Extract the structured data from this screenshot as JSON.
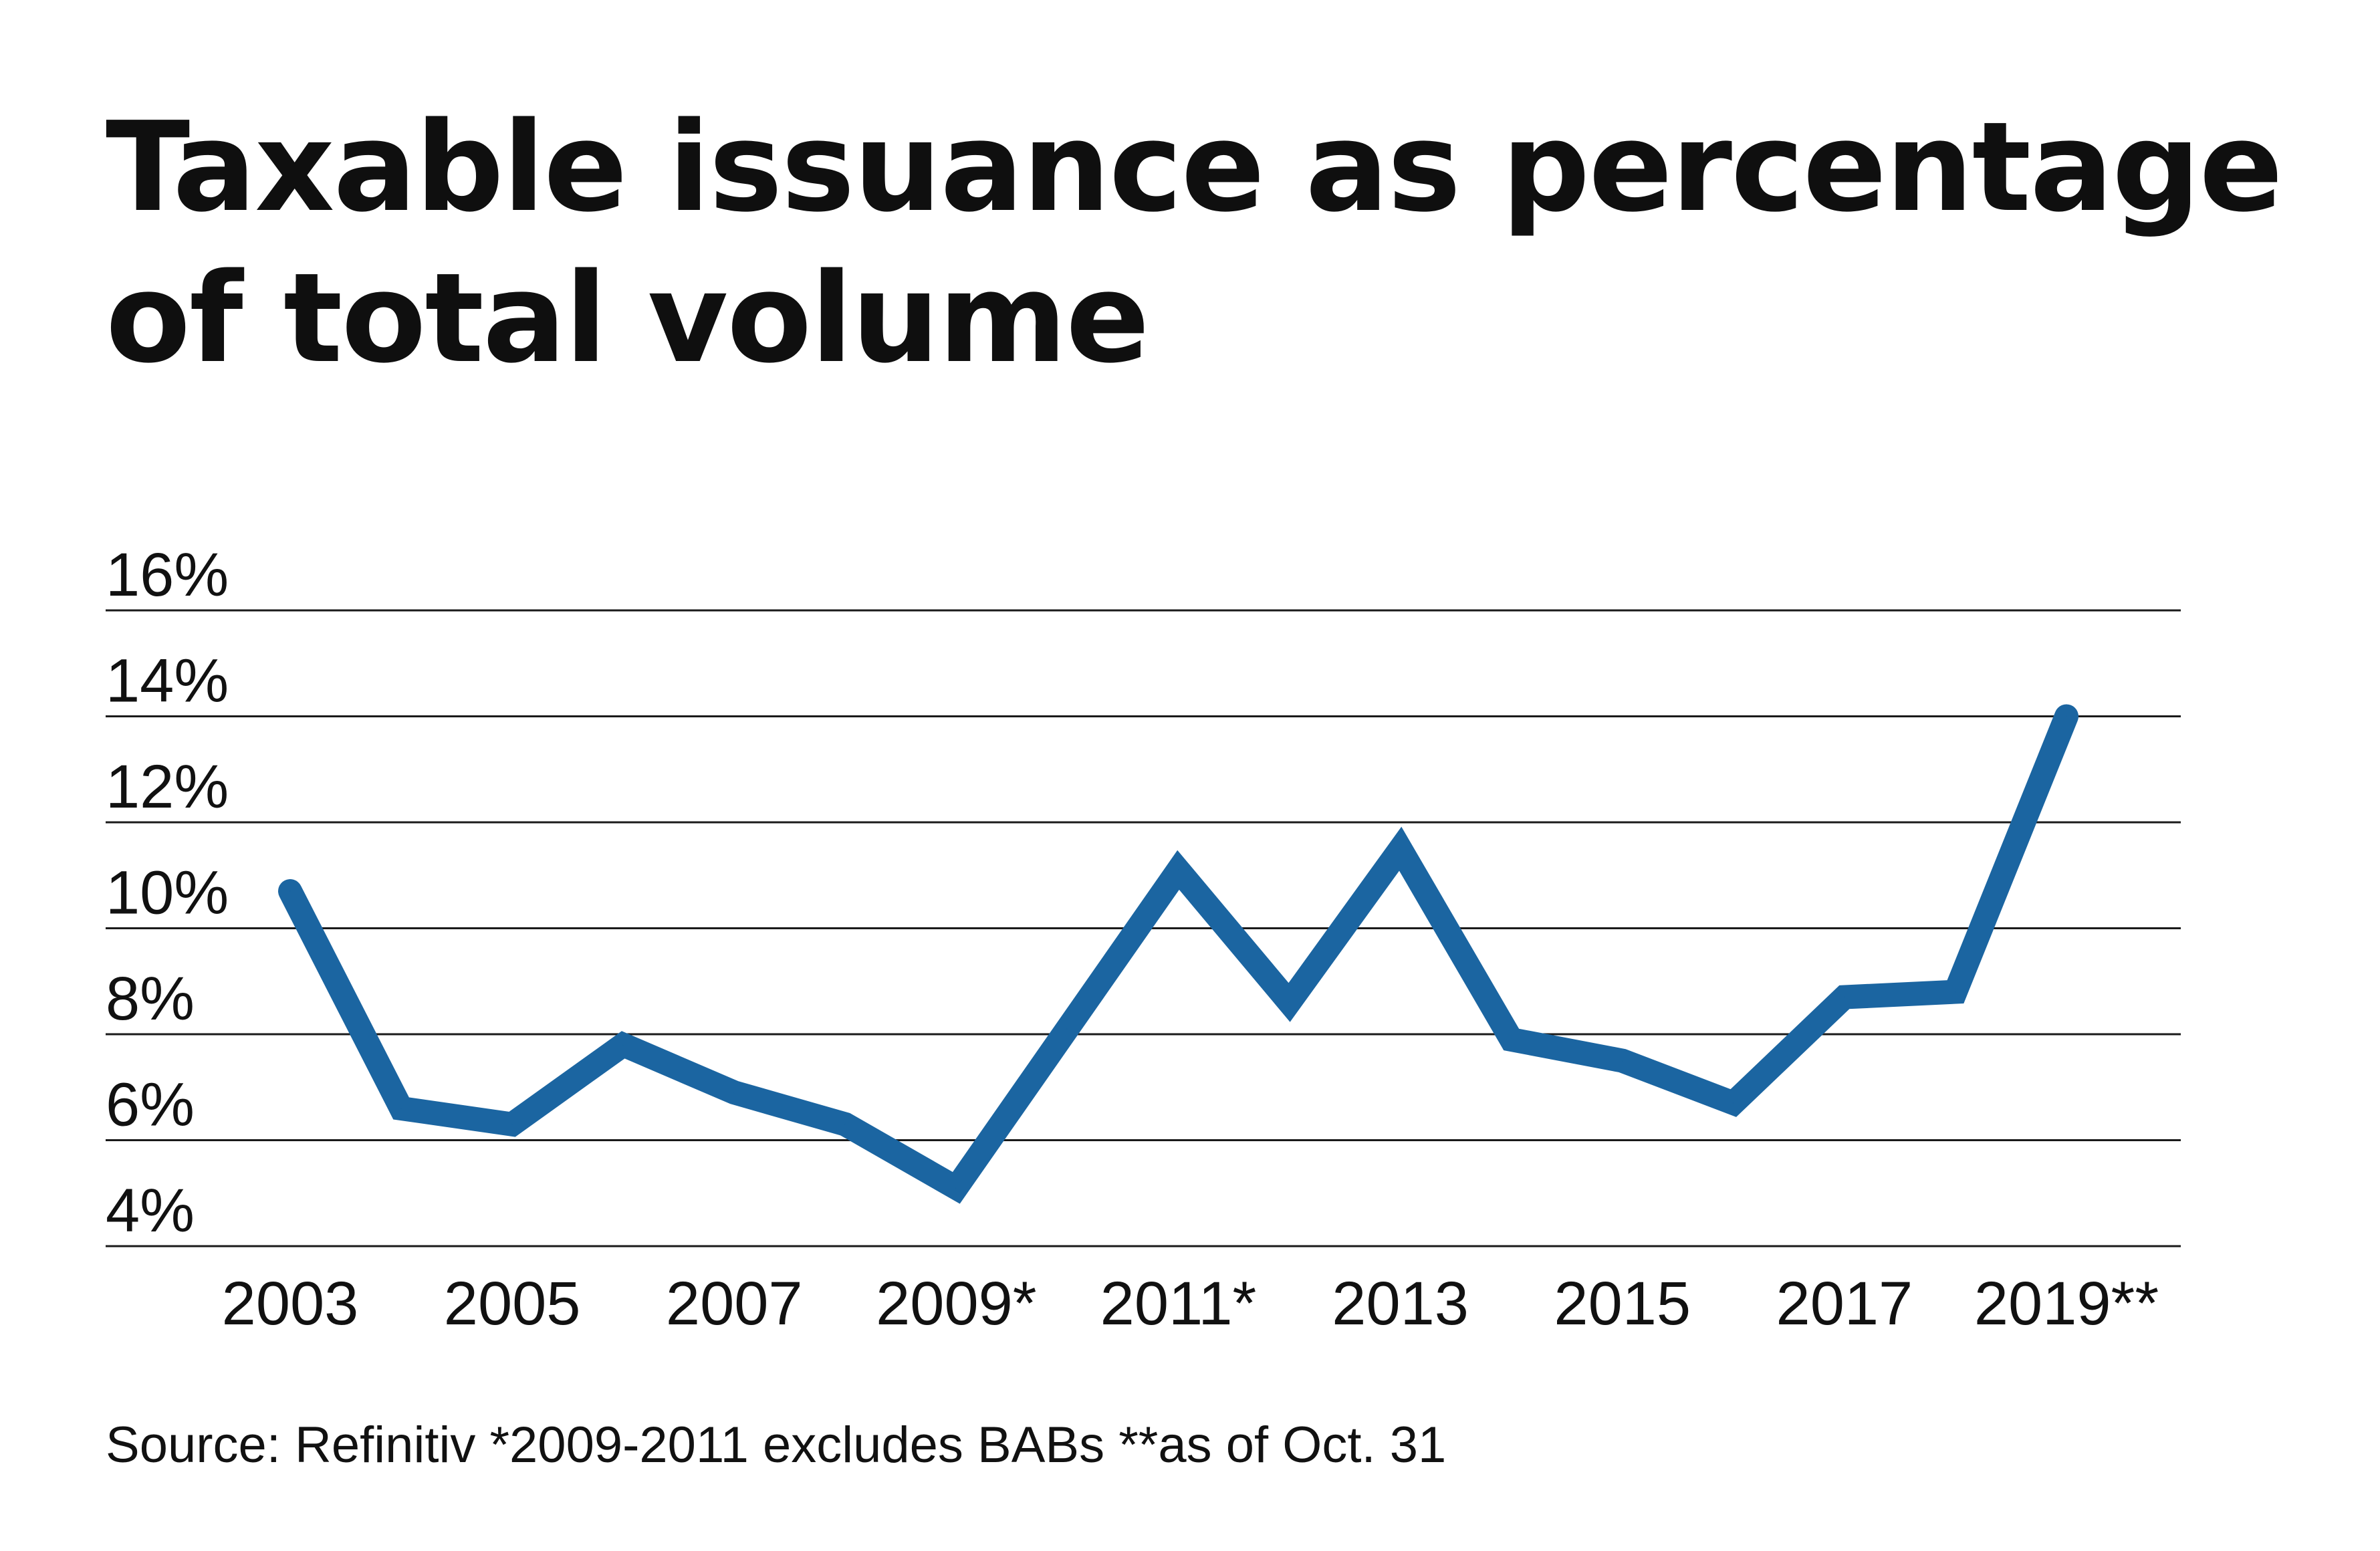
{
  "title_lines": [
    "Taxable issuance as percentage",
    "of total volume"
  ],
  "footnote": "Source: Refinitiv *2009-2011 excludes BABs **as of Oct. 31",
  "chart_data": {
    "type": "line",
    "title": "Taxable issuance as percentage of total volume",
    "xlabel": "",
    "ylabel": "",
    "x": [
      2003,
      2004,
      2005,
      2006,
      2007,
      2008,
      2009,
      2010,
      2011,
      2012,
      2013,
      2014,
      2015,
      2016,
      2017,
      2018,
      2019
    ],
    "series": [
      {
        "values": [
          10.7,
          6.6,
          6.3,
          7.8,
          6.9,
          6.3,
          5.1,
          8.1,
          11.1,
          8.6,
          11.5,
          7.9,
          7.5,
          6.7,
          8.7,
          8.8,
          14.0
        ],
        "color": "#1b65a1"
      }
    ],
    "ylim": [
      4,
      16
    ],
    "yticks": [
      4,
      6,
      8,
      10,
      12,
      14,
      16
    ],
    "ytick_labels": [
      "4%",
      "6%",
      "8%",
      "10%",
      "12%",
      "14%",
      "16%"
    ],
    "xticks": [
      2003,
      2005,
      2007,
      2009,
      2011,
      2013,
      2015,
      2017,
      2019
    ],
    "xtick_labels": [
      "2003",
      "2005",
      "2007",
      "2009*",
      "2011*",
      "2013",
      "2015",
      "2017",
      "2019**"
    ],
    "grid": true,
    "legend": "none",
    "grid_color": "#1a1a1a",
    "text_color": "#111111"
  }
}
